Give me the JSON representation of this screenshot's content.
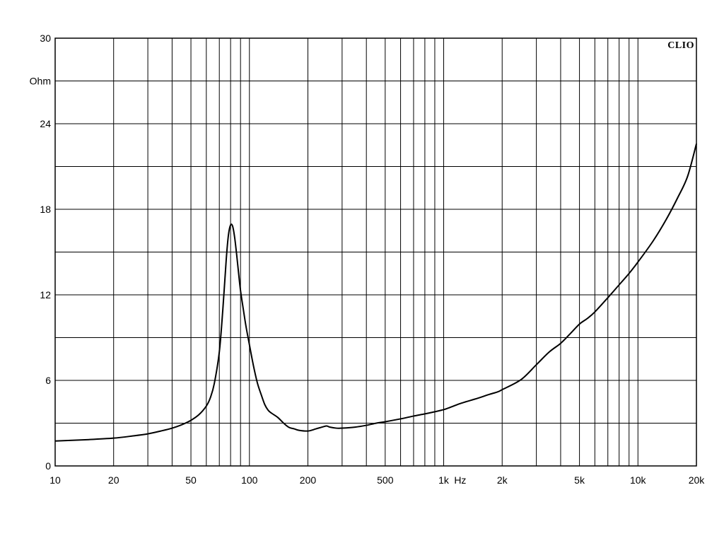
{
  "chart_data": {
    "type": "line",
    "title": "",
    "xlabel": "Hz",
    "ylabel": "Ohm",
    "brand": "CLIO",
    "x_scale": "log",
    "xlim": [
      10,
      20000
    ],
    "ylim": [
      0,
      30
    ],
    "grid": true,
    "legend": "none",
    "line_color": "#000000",
    "x_ticks": [
      {
        "value": 10,
        "label": "10"
      },
      {
        "value": 20,
        "label": "20"
      },
      {
        "value": 50,
        "label": "50"
      },
      {
        "value": 100,
        "label": "100"
      },
      {
        "value": 200,
        "label": "200"
      },
      {
        "value": 500,
        "label": "500"
      },
      {
        "value": 1000,
        "label": "1k"
      },
      {
        "value": 2000,
        "label": "2k"
      },
      {
        "value": 5000,
        "label": "5k"
      },
      {
        "value": 10000,
        "label": "10k"
      },
      {
        "value": 20000,
        "label": "20k"
      }
    ],
    "y_ticks": [
      {
        "value": 0,
        "label": "0"
      },
      {
        "value": 6,
        "label": "6"
      },
      {
        "value": 12,
        "label": "12"
      },
      {
        "value": 18,
        "label": "18"
      },
      {
        "value": 24,
        "label": "24"
      },
      {
        "value": 30,
        "label": "30"
      }
    ],
    "y_minor_ticks": [
      3,
      9,
      15,
      21,
      27
    ],
    "series": [
      {
        "x": [
          10,
          15,
          20,
          25,
          30,
          35,
          40,
          45,
          50,
          55,
          60,
          63,
          66,
          70,
          73,
          76,
          78,
          80,
          82,
          84,
          86,
          88,
          90,
          93,
          96,
          100,
          105,
          110,
          115,
          120,
          125,
          130,
          140,
          150,
          160,
          170,
          180,
          200,
          220,
          240,
          250,
          260,
          280,
          300,
          350,
          400,
          450,
          500,
          600,
          700,
          800,
          900,
          1000,
          1100,
          1200,
          1300,
          1500,
          1700,
          1900,
          2000,
          2500,
          3000,
          3500,
          4000,
          4500,
          5000,
          5500,
          6000,
          7000,
          8000,
          9000,
          10000,
          12000,
          14000,
          16000,
          18000,
          20000
        ],
        "values": [
          1.75,
          1.85,
          1.95,
          2.1,
          2.25,
          2.45,
          2.65,
          2.9,
          3.2,
          3.6,
          4.2,
          4.8,
          5.8,
          8.0,
          11.0,
          14.5,
          16.2,
          16.9,
          16.8,
          16.0,
          14.8,
          13.5,
          12.3,
          11.0,
          9.8,
          8.5,
          7.0,
          5.8,
          5.0,
          4.3,
          3.9,
          3.7,
          3.4,
          3.0,
          2.7,
          2.6,
          2.5,
          2.45,
          2.6,
          2.75,
          2.8,
          2.72,
          2.65,
          2.65,
          2.72,
          2.85,
          3.0,
          3.1,
          3.3,
          3.5,
          3.65,
          3.8,
          3.95,
          4.15,
          4.35,
          4.5,
          4.75,
          5.0,
          5.2,
          5.35,
          6.05,
          7.1,
          8.0,
          8.6,
          9.3,
          9.95,
          10.35,
          10.8,
          11.8,
          12.7,
          13.5,
          14.3,
          15.8,
          17.3,
          18.8,
          20.3,
          22.6
        ]
      }
    ]
  }
}
